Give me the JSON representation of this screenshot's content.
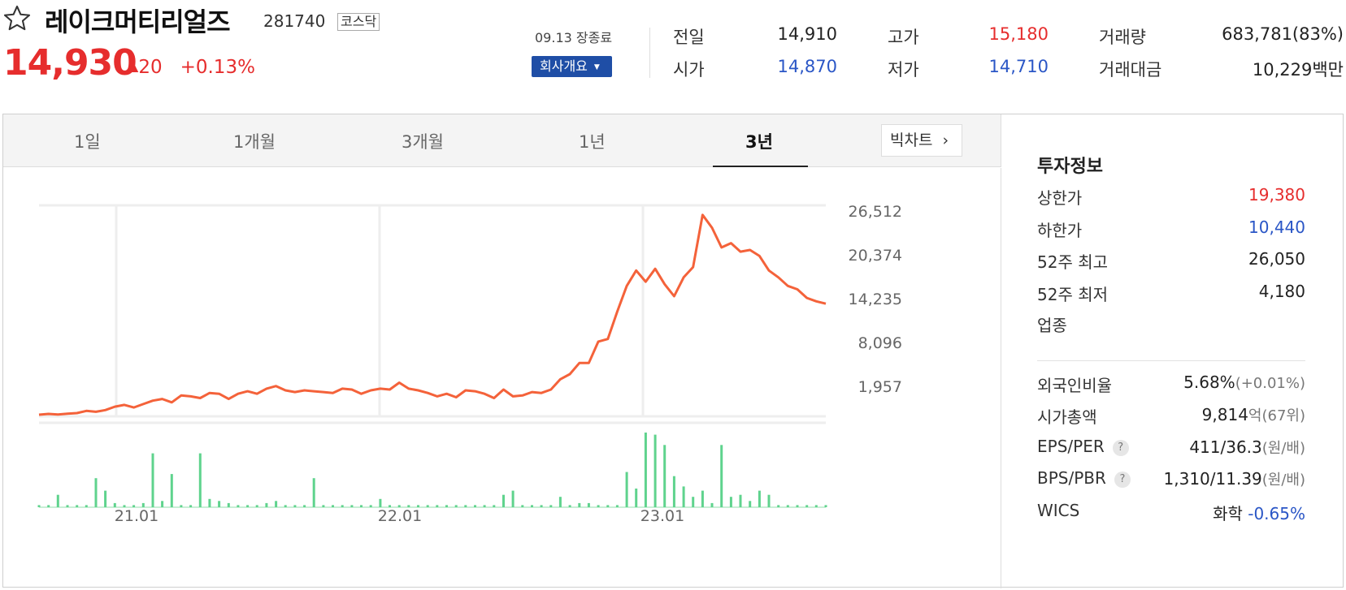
{
  "stock": {
    "name": "레이크머티리얼즈",
    "code": "281740",
    "market": "코스닥",
    "price": "14,930",
    "change_arrow": "▲",
    "change": "20",
    "change_pct": "+0.13%",
    "session": "09.13 장종료",
    "company_button": "회사개요",
    "colors": {
      "up": "#e62d2d",
      "down": "#2a56c6",
      "line": "#f4623a",
      "volume": "#5fd38d"
    }
  },
  "quotes": {
    "prev_close": {
      "label": "전일",
      "value": "14,910"
    },
    "open": {
      "label": "시가",
      "value": "14,870"
    },
    "high": {
      "label": "고가",
      "value": "15,180"
    },
    "low": {
      "label": "저가",
      "value": "14,710"
    },
    "volume": {
      "label": "거래량",
      "value": "683,781(83%)"
    },
    "turnover": {
      "label": "거래대금",
      "value": "10,229백만"
    }
  },
  "tabs": [
    {
      "label": "1일"
    },
    {
      "label": "1개월"
    },
    {
      "label": "3개월"
    },
    {
      "label": "1년"
    },
    {
      "label": "3년"
    }
  ],
  "active_tab": "3년",
  "big_chart_label": "빅차트",
  "chart_data": {
    "type": "line",
    "y_ticks": [
      "26,512",
      "20,374",
      "14,235",
      "8,096",
      "1,957"
    ],
    "ylim": [
      1957,
      26512
    ],
    "x_ticks": [
      "21.01",
      "22.01",
      "23.01"
    ],
    "price_series": [
      1957,
      2050,
      1980,
      2080,
      2150,
      2400,
      2300,
      2500,
      2900,
      3100,
      2800,
      3200,
      3600,
      3800,
      3400,
      4200,
      4100,
      3900,
      4500,
      4400,
      3800,
      4400,
      4700,
      4400,
      5000,
      5300,
      4800,
      4600,
      4800,
      4700,
      4600,
      4500,
      5000,
      4900,
      4400,
      4800,
      5000,
      4900,
      5700,
      5000,
      4800,
      4500,
      4100,
      4400,
      4000,
      4800,
      4700,
      4400,
      3900,
      4900,
      4100,
      4200,
      4600,
      4500,
      4900,
      6100,
      6700,
      8000,
      8000,
      10500,
      10800,
      14000,
      17000,
      18800,
      17500,
      19000,
      17200,
      15800,
      18000,
      19200,
      25300,
      23800,
      21500,
      22000,
      21000,
      21200,
      20500,
      18800,
      18000,
      17000,
      16600,
      15600,
      15200,
      14930
    ],
    "volume_series": [
      1,
      1,
      6,
      1,
      1,
      1,
      14,
      8,
      2,
      1,
      1,
      2,
      26,
      3,
      16,
      1,
      1,
      26,
      4,
      3,
      2,
      1,
      1,
      1,
      2,
      3,
      1,
      1,
      1,
      14,
      1,
      1,
      1,
      1,
      1,
      1,
      4,
      1,
      1,
      1,
      1,
      1,
      1,
      1,
      1,
      1,
      1,
      1,
      1,
      6,
      8,
      1,
      1,
      1,
      1,
      5,
      1,
      2,
      2,
      1,
      1,
      1,
      17,
      9,
      36,
      35,
      30,
      15,
      10,
      5,
      8,
      2,
      30,
      5,
      6,
      3,
      8,
      6,
      1,
      1,
      1,
      1,
      1,
      1
    ]
  },
  "invest_info": {
    "title": "투자정보",
    "upper_limit": {
      "label": "상한가",
      "value": "19,380"
    },
    "lower_limit": {
      "label": "하한가",
      "value": "10,440"
    },
    "w52_high": {
      "label": "52주 최고",
      "value": "26,050"
    },
    "w52_low": {
      "label": "52주 최저",
      "value": "4,180"
    },
    "sector": {
      "label": "업종"
    },
    "foreign_ratio": {
      "label": "외국인비율",
      "value": "5.68%",
      "sub": "(+0.01%)"
    },
    "market_cap": {
      "label": "시가총액",
      "value": "9,814",
      "sub": "억(67위)"
    },
    "eps_per": {
      "label": "EPS/PER",
      "value": "411/36.3",
      "sub": "(원/배)"
    },
    "bps_pbr": {
      "label": "BPS/PBR",
      "value": "1,310/11.39",
      "sub": "(원/배)"
    },
    "wics": {
      "label": "WICS",
      "value": "화학",
      "change": "-0.65%"
    }
  }
}
